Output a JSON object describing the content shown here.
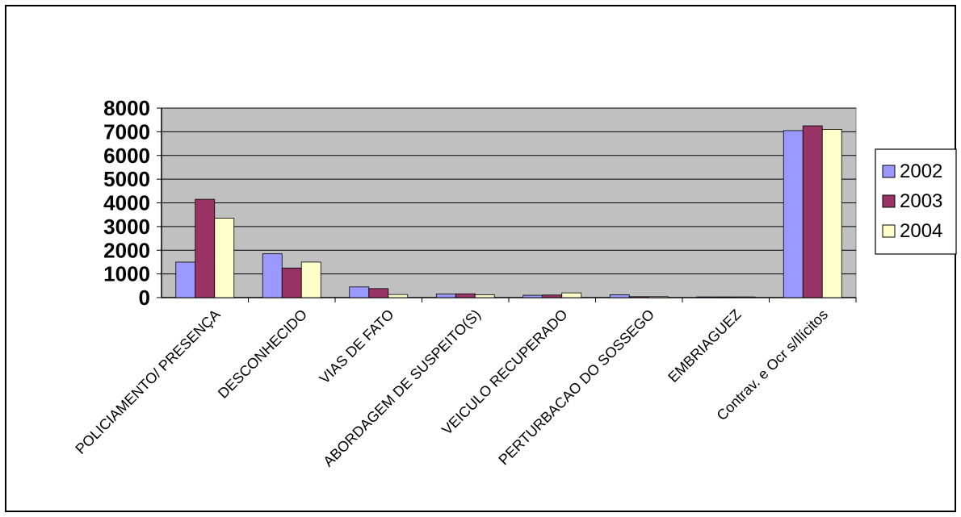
{
  "chart_data": {
    "type": "bar",
    "title": "",
    "xlabel": "",
    "ylabel": "",
    "ylim": [
      0,
      8000
    ],
    "yticks": [
      0,
      1000,
      2000,
      3000,
      4000,
      5000,
      6000,
      7000,
      8000
    ],
    "grid": true,
    "legend": "right",
    "categories": [
      "POLICIAMENTO/ PRESENÇA",
      "DESCONHECIDO",
      "VIAS DE FATO",
      "ABORDAGEM DE SUSPEITO(S)",
      "VEICULO RECUPERADO",
      "PERTURBACAO DO SOSSEGO",
      "EMBRIAGUEZ",
      "Contrav. e Ocr s/Ilícitos"
    ],
    "series": [
      {
        "name": "2002",
        "color": "#9999ff",
        "values": [
          1500,
          1850,
          450,
          150,
          100,
          120,
          30,
          7050
        ]
      },
      {
        "name": "2003",
        "color": "#993366",
        "values": [
          4150,
          1250,
          380,
          160,
          110,
          40,
          30,
          7250
        ]
      },
      {
        "name": "2004",
        "color": "#ffffcc",
        "values": [
          3350,
          1500,
          130,
          120,
          200,
          40,
          30,
          7100
        ]
      }
    ],
    "plot_background": "#c0c0c0"
  }
}
